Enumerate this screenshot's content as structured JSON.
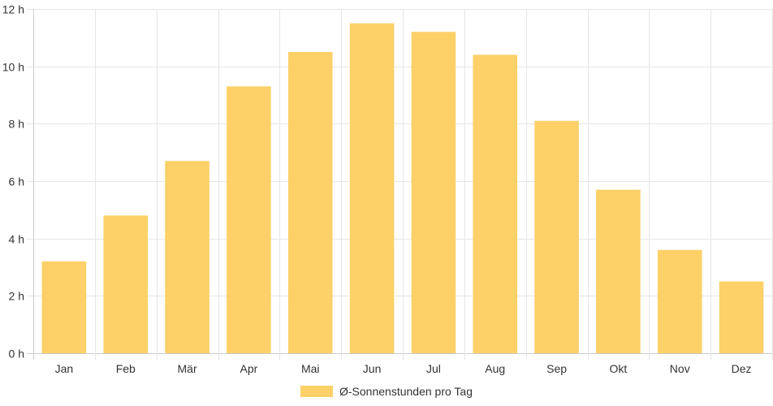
{
  "chart_data": {
    "type": "bar",
    "categories": [
      "Jan",
      "Feb",
      "Mär",
      "Apr",
      "Mai",
      "Jun",
      "Jul",
      "Aug",
      "Sep",
      "Okt",
      "Nov",
      "Dez"
    ],
    "series": [
      {
        "name": "Ø-Sonnenstunden pro Tag",
        "values": [
          3.2,
          4.8,
          6.7,
          9.3,
          10.5,
          11.5,
          11.2,
          10.4,
          8.1,
          5.7,
          3.6,
          2.5
        ],
        "color": "#fdd068"
      }
    ],
    "ylim": [
      0,
      12
    ],
    "yticks": [
      0,
      2,
      4,
      6,
      8,
      10,
      12
    ],
    "ytick_suffix": " h",
    "grid": true,
    "legend_position": "bottom"
  }
}
